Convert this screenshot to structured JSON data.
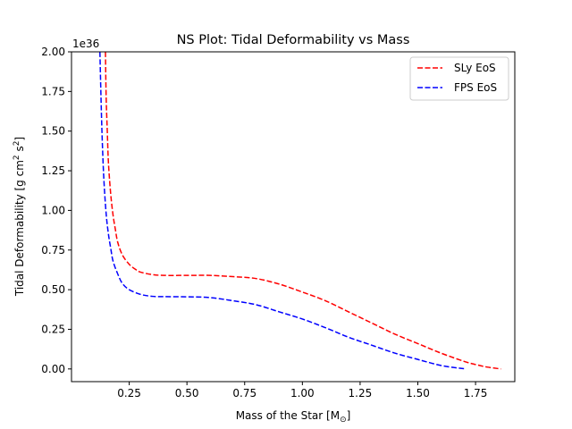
{
  "chart_data": {
    "type": "line",
    "title": "NS Plot: Tidal Deformability vs Mass",
    "xlabel": "Mass of the Star [M",
    "xlabel_subscript": "⊙",
    "xlabel_suffix": "]",
    "ylabel": "Tidal Deformability [g cm",
    "ylabel_sup1": "2",
    "ylabel_mid": " s",
    "ylabel_sup2": "2",
    "ylabel_suffix": "]",
    "y_offset_label": "1e36",
    "xlim": [
      0.0,
      1.92
    ],
    "ylim": [
      -0.08,
      2.0
    ],
    "x_ticks": [
      0.25,
      0.5,
      0.75,
      1.0,
      1.25,
      1.5,
      1.75
    ],
    "x_tick_labels": [
      "0.25",
      "0.50",
      "0.75",
      "1.00",
      "1.25",
      "1.50",
      "1.75"
    ],
    "y_ticks": [
      0.0,
      0.25,
      0.5,
      0.75,
      1.0,
      1.25,
      1.5,
      1.75,
      2.0
    ],
    "y_tick_labels": [
      "0.00",
      "0.25",
      "0.50",
      "0.75",
      "1.00",
      "1.25",
      "1.50",
      "1.75",
      "2.00"
    ],
    "grid": false,
    "legend_position": "top-right",
    "series": [
      {
        "name": "SLy EoS",
        "color": "#ff0000",
        "linestyle": "dashed",
        "x": [
          0.147,
          0.15,
          0.155,
          0.16,
          0.17,
          0.18,
          0.19,
          0.2,
          0.22,
          0.25,
          0.28,
          0.3,
          0.35,
          0.4,
          0.5,
          0.6,
          0.7,
          0.8,
          0.9,
          1.0,
          1.1,
          1.2,
          1.3,
          1.4,
          1.5,
          1.6,
          1.7,
          1.75,
          1.8,
          1.86
        ],
        "y": [
          2.0,
          1.72,
          1.5,
          1.3,
          1.1,
          0.97,
          0.88,
          0.8,
          0.72,
          0.66,
          0.625,
          0.61,
          0.595,
          0.59,
          0.59,
          0.59,
          0.582,
          0.57,
          0.535,
          0.485,
          0.43,
          0.36,
          0.29,
          0.22,
          0.16,
          0.1,
          0.048,
          0.028,
          0.012,
          0.0
        ]
      },
      {
        "name": "FPS EoS",
        "color": "#0000ff",
        "linestyle": "dashed",
        "x": [
          0.123,
          0.128,
          0.133,
          0.14,
          0.15,
          0.16,
          0.17,
          0.18,
          0.2,
          0.22,
          0.25,
          0.3,
          0.35,
          0.4,
          0.5,
          0.6,
          0.7,
          0.8,
          0.9,
          1.0,
          1.1,
          1.2,
          1.3,
          1.4,
          1.5,
          1.55,
          1.6,
          1.65,
          1.7
        ],
        "y": [
          2.0,
          1.7,
          1.45,
          1.2,
          0.98,
          0.85,
          0.76,
          0.68,
          0.6,
          0.54,
          0.5,
          0.47,
          0.458,
          0.456,
          0.455,
          0.45,
          0.43,
          0.405,
          0.36,
          0.315,
          0.26,
          0.2,
          0.15,
          0.1,
          0.06,
          0.04,
          0.022,
          0.01,
          0.002
        ]
      }
    ]
  }
}
